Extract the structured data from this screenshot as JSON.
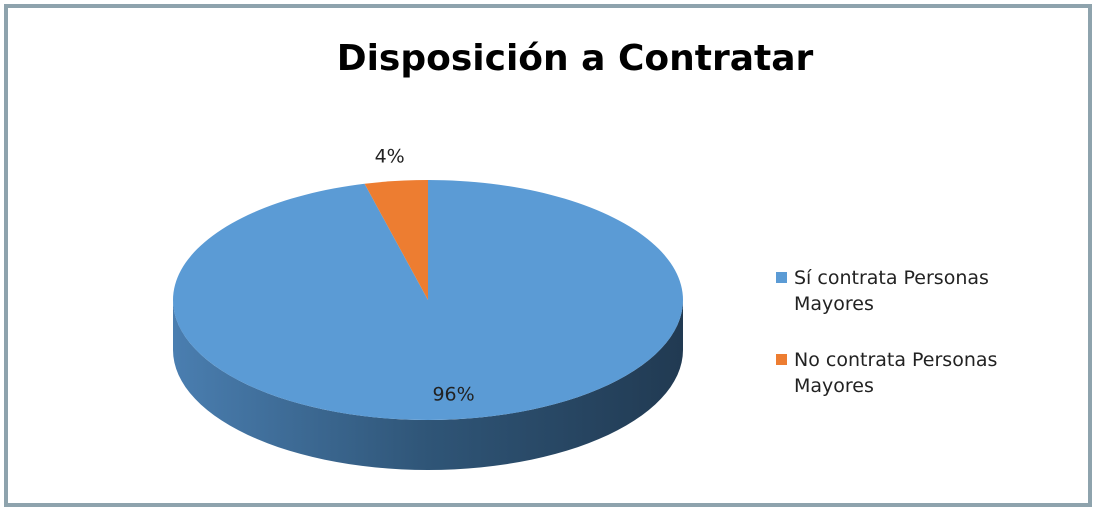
{
  "chart_data": {
    "type": "pie",
    "title": "Disposición a Contratar",
    "categories": [
      "Sí contrata Personas Mayores",
      "No contrata Personas Mayores"
    ],
    "values": [
      96,
      4
    ],
    "value_labels": [
      "96%",
      "4%"
    ],
    "colors": [
      "#5b9bd5",
      "#ed7d31"
    ],
    "legend": "right"
  }
}
